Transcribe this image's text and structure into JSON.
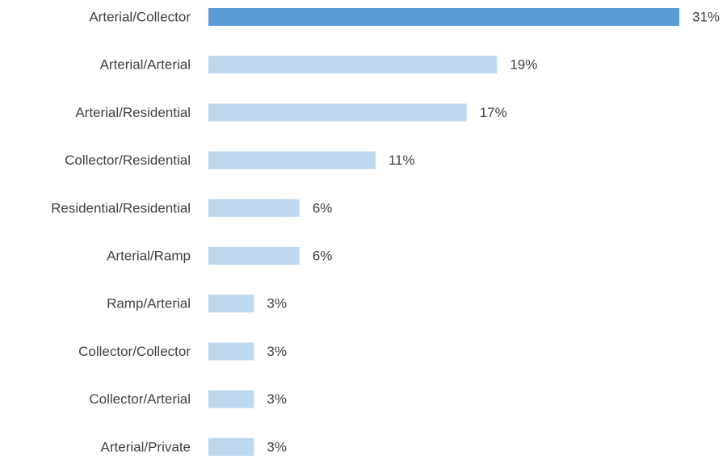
{
  "chart_data": {
    "type": "bar",
    "orientation": "horizontal",
    "title": "",
    "xlabel": "",
    "ylabel": "",
    "categories": [
      "Arterial/Collector",
      "Arterial/Arterial",
      "Arterial/Residential",
      "Collector/Residential",
      "Residential/Residential",
      "Arterial/Ramp",
      "Ramp/Arterial",
      "Collector/Collector",
      "Collector/Arterial",
      "Arterial/Private"
    ],
    "values": [
      31,
      19,
      17,
      11,
      6,
      6,
      3,
      3,
      3,
      3
    ],
    "value_labels": [
      "31%",
      "19%",
      "17%",
      "11%",
      "6%",
      "6%",
      "3%",
      "3%",
      "3%",
      "3%"
    ],
    "unit": "%",
    "xlim": [
      0,
      31
    ],
    "grid": false,
    "legend": "none",
    "highlight_index": 0,
    "colors": {
      "highlight": "#5b9bd5",
      "bar": "#bdd7ee",
      "text": "#404040"
    }
  }
}
